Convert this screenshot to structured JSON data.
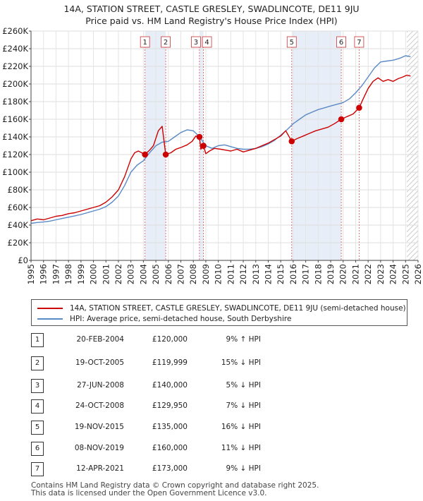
{
  "chart_data": {
    "type": "line",
    "title": "14A, STATION STREET, CASTLE GRESLEY, SWADLINCOTE, DE11 9JU",
    "subtitle": "Price paid vs. HM Land Registry's House Price Index (HPI)",
    "xlabel": "",
    "ylabel": "",
    "xlim": [
      1995,
      2026
    ],
    "ylim": [
      0,
      260000
    ],
    "x_ticks": [
      "1995",
      "1996",
      "1997",
      "1998",
      "1999",
      "2000",
      "2001",
      "2002",
      "2003",
      "2004",
      "2005",
      "2006",
      "2007",
      "2008",
      "2009",
      "2010",
      "2011",
      "2012",
      "2013",
      "2014",
      "2015",
      "2016",
      "2017",
      "2018",
      "2019",
      "2020",
      "2021",
      "2022",
      "2023",
      "2024",
      "2025",
      "2026"
    ],
    "y_ticks": [
      {
        "value": 0,
        "label": "£0"
      },
      {
        "value": 20000,
        "label": "£20K"
      },
      {
        "value": 40000,
        "label": "£40K"
      },
      {
        "value": 60000,
        "label": "£60K"
      },
      {
        "value": 80000,
        "label": "£80K"
      },
      {
        "value": 100000,
        "label": "£100K"
      },
      {
        "value": 120000,
        "label": "£120K"
      },
      {
        "value": 140000,
        "label": "£140K"
      },
      {
        "value": 160000,
        "label": "£160K"
      },
      {
        "value": 180000,
        "label": "£180K"
      },
      {
        "value": 200000,
        "label": "£200K"
      },
      {
        "value": 220000,
        "label": "£220K"
      },
      {
        "value": 240000,
        "label": "£240K"
      },
      {
        "value": 260000,
        "label": "£260K"
      }
    ],
    "grid": true,
    "series": [
      {
        "name": "14A, STATION STREET, CASTLE GRESLEY, SWADLINCOTE, DE11 9JU (semi-detached house)",
        "color": "#cc0000",
        "x": [
          1995.0,
          1995.5,
          1996.0,
          1996.5,
          1997.0,
          1997.5,
          1998.0,
          1998.5,
          1999.0,
          1999.5,
          2000.0,
          2000.5,
          2001.0,
          2001.5,
          2002.0,
          2002.5,
          2003.0,
          2003.3,
          2003.6,
          2004.13,
          2004.5,
          2004.8,
          2005.2,
          2005.5,
          2005.79,
          2006.2,
          2006.6,
          2007.0,
          2007.5,
          2007.9,
          2008.2,
          2008.49,
          2008.6,
          2008.81,
          2009.0,
          2009.3,
          2009.7,
          2010.2,
          2010.6,
          2011.0,
          2011.5,
          2012.0,
          2012.5,
          2013.0,
          2013.5,
          2014.0,
          2014.5,
          2015.0,
          2015.4,
          2015.88,
          2016.3,
          2016.8,
          2017.3,
          2017.8,
          2018.3,
          2018.8,
          2019.3,
          2019.85,
          2020.3,
          2020.8,
          2021.28,
          2021.6,
          2022.0,
          2022.4,
          2022.8,
          2023.2,
          2023.6,
          2024.0,
          2024.4,
          2024.8,
          2025.1,
          2025.4
        ],
        "values": [
          45000,
          47000,
          46000,
          48000,
          50000,
          51000,
          53000,
          54000,
          56000,
          58000,
          60000,
          62000,
          66000,
          72000,
          80000,
          95000,
          115000,
          122000,
          124000,
          120000,
          125000,
          130000,
          147000,
          152000,
          119999,
          122000,
          126000,
          128000,
          131000,
          135000,
          141000,
          140000,
          126000,
          129950,
          121000,
          124000,
          127000,
          126000,
          125000,
          124000,
          126000,
          123000,
          125000,
          127000,
          130000,
          133000,
          137000,
          141000,
          147000,
          135000,
          138000,
          141000,
          144000,
          147000,
          149000,
          151000,
          155000,
          160000,
          163000,
          166000,
          173000,
          183000,
          195000,
          203000,
          207000,
          203000,
          205000,
          203000,
          206000,
          208000,
          210000,
          209000
        ]
      },
      {
        "name": "HPI: Average price, semi-detached house, South Derbyshire",
        "color": "#5a8ac6",
        "x": [
          1995.0,
          1995.5,
          1996.0,
          1996.5,
          1997.0,
          1997.5,
          1998.0,
          1998.5,
          1999.0,
          1999.5,
          2000.0,
          2000.5,
          2001.0,
          2001.5,
          2002.0,
          2002.5,
          2003.0,
          2003.5,
          2004.0,
          2004.5,
          2005.0,
          2005.5,
          2006.0,
          2006.5,
          2007.0,
          2007.5,
          2008.0,
          2008.5,
          2009.0,
          2009.5,
          2010.0,
          2010.5,
          2011.0,
          2011.5,
          2012.0,
          2012.5,
          2013.0,
          2013.5,
          2014.0,
          2014.5,
          2015.0,
          2015.5,
          2016.0,
          2016.5,
          2017.0,
          2017.5,
          2018.0,
          2018.5,
          2019.0,
          2019.5,
          2020.0,
          2020.5,
          2021.0,
          2021.5,
          2022.0,
          2022.5,
          2023.0,
          2023.5,
          2024.0,
          2024.5,
          2025.0,
          2025.4
        ],
        "values": [
          42000,
          43000,
          43500,
          44500,
          46000,
          47500,
          49000,
          50500,
          52000,
          54000,
          56000,
          58000,
          61000,
          66000,
          73000,
          85000,
          100000,
          108000,
          113000,
          122000,
          130000,
          134000,
          135000,
          140000,
          145000,
          148000,
          147000,
          140000,
          130000,
          127000,
          130000,
          131000,
          129000,
          127000,
          126000,
          126000,
          127000,
          129000,
          132000,
          136000,
          142000,
          148000,
          155000,
          160000,
          165000,
          168000,
          171000,
          173000,
          175000,
          177000,
          179000,
          183000,
          190000,
          198000,
          208000,
          218000,
          225000,
          226000,
          227000,
          229000,
          232000,
          231000
        ]
      }
    ],
    "markers": [
      {
        "label": "1",
        "x": 2004.13,
        "value": 120000
      },
      {
        "label": "2",
        "x": 2005.79,
        "value": 119999
      },
      {
        "label": "3",
        "x": 2008.49,
        "value": 140000
      },
      {
        "label": "4",
        "x": 2008.81,
        "value": 129950
      },
      {
        "label": "5",
        "x": 2015.88,
        "value": 135000
      },
      {
        "label": "6",
        "x": 2019.85,
        "value": 160000
      },
      {
        "label": "7",
        "x": 2021.28,
        "value": 173000
      }
    ],
    "shaded_ranges": [
      [
        2004.13,
        2005.79
      ],
      [
        2008.49,
        2008.81
      ],
      [
        2015.88,
        2019.85
      ]
    ],
    "hatch_from": 2025.1
  },
  "legend": {
    "entries": [
      {
        "label": "14A, STATION STREET, CASTLE GRESLEY, SWADLINCOTE, DE11 9JU (semi-detached house)",
        "color": "#cc0000"
      },
      {
        "label": "HPI: Average price, semi-detached house, South Derbyshire",
        "color": "#5a8ac6"
      }
    ]
  },
  "transactions": [
    {
      "num": "1",
      "date": "20-FEB-2004",
      "price": "£120,000",
      "hpi": "9% ↑ HPI"
    },
    {
      "num": "2",
      "date": "19-OCT-2005",
      "price": "£119,999",
      "hpi": "15% ↓ HPI"
    },
    {
      "num": "3",
      "date": "27-JUN-2008",
      "price": "£140,000",
      "hpi": "5% ↓ HPI"
    },
    {
      "num": "4",
      "date": "24-OCT-2008",
      "price": "£129,950",
      "hpi": "7% ↓ HPI"
    },
    {
      "num": "5",
      "date": "19-NOV-2015",
      "price": "£135,000",
      "hpi": "16% ↓ HPI"
    },
    {
      "num": "6",
      "date": "08-NOV-2019",
      "price": "£160,000",
      "hpi": "11% ↓ HPI"
    },
    {
      "num": "7",
      "date": "12-APR-2021",
      "price": "£173,000",
      "hpi": "9% ↓ HPI"
    }
  ],
  "footer": {
    "line1": "Contains HM Land Registry data © Crown copyright and database right 2025.",
    "line2": "This data is licensed under the Open Government Licence v3.0."
  }
}
